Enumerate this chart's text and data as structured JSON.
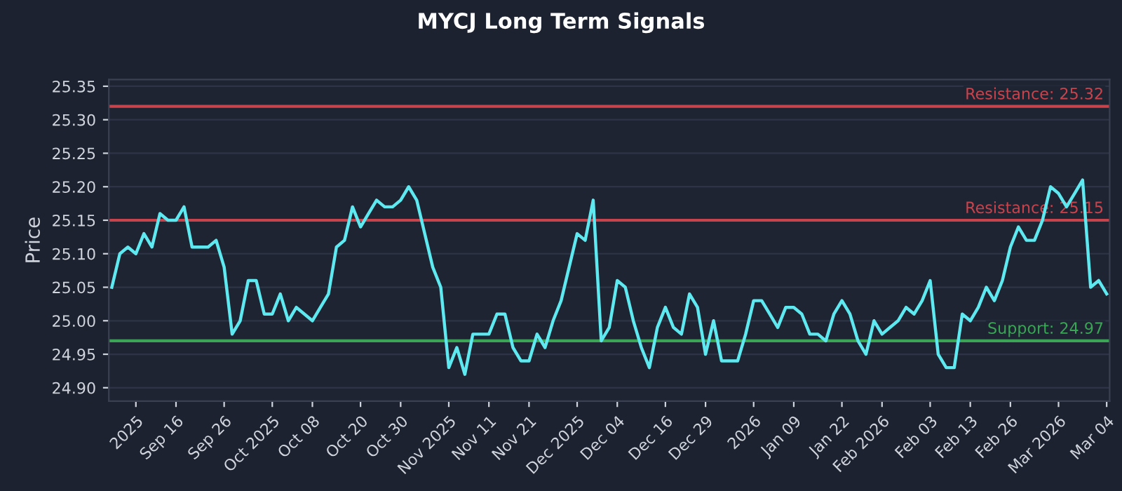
{
  "chart_data": {
    "type": "line",
    "title": "MYCJ Long Term Signals",
    "ylabel": "Price",
    "categories": [
      null,
      null,
      null,
      "2025",
      null,
      null,
      null,
      null,
      "Sep 16",
      null,
      null,
      null,
      null,
      null,
      "Sep 26",
      null,
      null,
      null,
      null,
      null,
      "Oct 2025",
      null,
      null,
      null,
      null,
      "Oct 08",
      null,
      null,
      null,
      null,
      null,
      "Oct 20",
      null,
      null,
      null,
      null,
      "Oct 30",
      null,
      null,
      null,
      null,
      null,
      "Nov 2025",
      null,
      null,
      null,
      null,
      "Nov 11",
      null,
      null,
      null,
      null,
      "Nov 21",
      null,
      null,
      null,
      null,
      null,
      "Dec 2025",
      null,
      null,
      null,
      null,
      "Dec 04",
      null,
      null,
      null,
      null,
      null,
      "Dec 16",
      null,
      null,
      null,
      null,
      "Dec 29",
      null,
      null,
      null,
      null,
      null,
      "2026",
      null,
      null,
      null,
      null,
      "Jan 09",
      null,
      null,
      null,
      null,
      null,
      "Jan 22",
      null,
      null,
      null,
      null,
      "Feb 2026",
      null,
      null,
      null,
      null,
      null,
      "Feb 03",
      null,
      null,
      null,
      null,
      "Feb 13",
      null,
      null,
      null,
      null,
      "Feb 26",
      null,
      null,
      null,
      null,
      null,
      "Mar 2026",
      null,
      null,
      null,
      null,
      null,
      "Mar 04"
    ],
    "series": [
      {
        "color": "#5ee8f0",
        "values": [
          25.05,
          25.1,
          25.11,
          25.1,
          25.13,
          25.11,
          25.16,
          25.15,
          25.15,
          25.17,
          25.11,
          25.11,
          25.11,
          25.12,
          25.08,
          24.98,
          25.0,
          25.06,
          25.06,
          25.01,
          25.01,
          25.04,
          25.0,
          25.02,
          25.01,
          25.0,
          25.02,
          25.04,
          25.11,
          25.12,
          25.17,
          25.14,
          25.16,
          25.18,
          25.17,
          25.17,
          25.18,
          25.2,
          25.18,
          25.13,
          25.08,
          25.05,
          24.93,
          24.96,
          24.92,
          24.98,
          24.98,
          24.98,
          25.01,
          25.01,
          24.96,
          24.94,
          24.94,
          24.98,
          24.96,
          25.0,
          25.03,
          25.08,
          25.13,
          25.12,
          25.18,
          24.97,
          24.99,
          25.06,
          25.05,
          25.0,
          24.96,
          24.93,
          24.99,
          25.02,
          24.99,
          24.98,
          25.04,
          25.02,
          24.95,
          25.0,
          24.94,
          24.94,
          24.94,
          24.98,
          25.03,
          25.03,
          25.01,
          24.99,
          25.02,
          25.02,
          25.01,
          24.98,
          24.98,
          24.97,
          25.01,
          25.03,
          25.01,
          24.97,
          24.95,
          25.0,
          24.98,
          24.99,
          25.0,
          25.02,
          25.01,
          25.03,
          25.06,
          24.95,
          24.93,
          24.93,
          25.01,
          25.0,
          25.02,
          25.05,
          25.03,
          25.06,
          25.11,
          25.14,
          25.12,
          25.12,
          25.15,
          25.2,
          25.19,
          25.17,
          25.19,
          25.21,
          25.05,
          25.06,
          25.04
        ]
      }
    ],
    "ylim": [
      24.88,
      25.36
    ],
    "yticks": [
      {
        "value": 24.9,
        "label": "24.90"
      },
      {
        "value": 24.95,
        "label": "24.95"
      },
      {
        "value": 25.0,
        "label": "25.00"
      },
      {
        "value": 25.05,
        "label": "25.05"
      },
      {
        "value": 25.1,
        "label": "25.10"
      },
      {
        "value": 25.15,
        "label": "25.15"
      },
      {
        "value": 25.2,
        "label": "25.20"
      },
      {
        "value": 25.25,
        "label": "25.25"
      },
      {
        "value": 25.3,
        "label": "25.30"
      },
      {
        "value": 25.35,
        "label": "25.35"
      }
    ],
    "grid": "y",
    "ref_lines": [
      {
        "axis": "y",
        "value": 25.32,
        "label": "Resistance: 25.32",
        "color": "#c8444c"
      },
      {
        "axis": "y",
        "value": 25.15,
        "label": "Resistance: 25.15",
        "color": "#c8444c"
      },
      {
        "axis": "y",
        "value": 24.97,
        "label": "Support: 24.97",
        "color": "#3aa655"
      }
    ]
  }
}
